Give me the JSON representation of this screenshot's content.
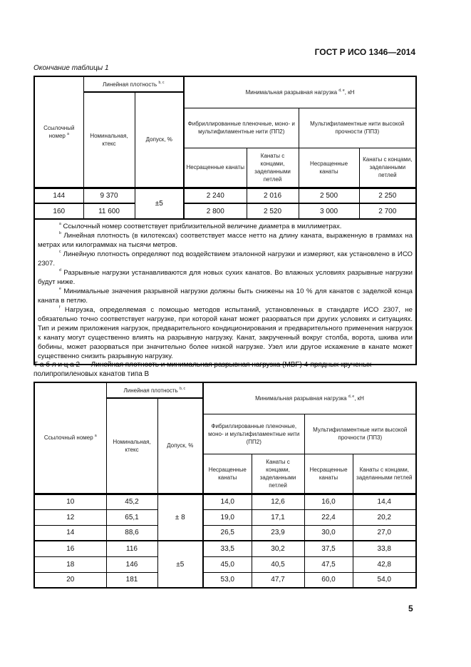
{
  "header": {
    "doc_id": "ГОСТ Р ИСО 1346—2014"
  },
  "table1": {
    "continuation": "Окончание таблицы 1",
    "headers": {
      "ref_no": "Ссылочный номер",
      "ref_no_sup": "a",
      "lin_density": "Линейная плотность",
      "lin_density_sup": "b, c",
      "nominal": "Номинальная, ктекс",
      "tolerance": "Допуск, %",
      "mbf": "Минимальная разрывная нагрузка",
      "mbf_sup": "d, e",
      "mbf_unit": ", кН",
      "pp2": "Фибриллированные пленочные, моно- и мультифиламентные нити (ПП2)",
      "pp3": "Мультифиламентные нити высокой прочности (ПП3)",
      "unspliced": "Несращенные канаты",
      "spliced": "Канаты с концами, заделанными петлей"
    },
    "rows": [
      [
        "144",
        "9 370",
        "2 240",
        "2 016",
        "2 500",
        "2 250"
      ],
      [
        "160",
        "11 600",
        "2 800",
        "2 520",
        "3 000",
        "2 700"
      ]
    ],
    "tolerance_groups": [
      "±5"
    ],
    "footnotes": [
      {
        "mark": "a",
        "text": "Ссылочный номер соответствует приблизительной величине диаметра в миллиметрах."
      },
      {
        "mark": "b",
        "text": "Линейная плотность (в килотексах) соответствует массе нетто на длину каната, выраженную в граммах на метрах или килограммах на тысячи метров."
      },
      {
        "mark": "c",
        "text": "Линейную плотность определяют под воздействием эталонной нагрузки и измеряют, как установлено в ИСО 2307."
      },
      {
        "mark": "d",
        "text": "Разрывные нагрузки устанавливаются для новых сухих канатов. Во влажных условиях разрывные нагрузки будут ниже."
      },
      {
        "mark": "e",
        "text": "Минимальные значения разрывной нагрузки должны быть снижены на 10 % для канатов с заделкой конца каната в петлю."
      },
      {
        "mark": "f",
        "text": "Нагрузка, определяемая с помощью методов испытаний, установленных в стандарте ИСО 2307, не обязательно точно соответствует нагрузке, при которой канат может разорваться при других условиях и ситуациях. Тип и режим приложения нагрузок, предварительного кондиционирования и предварительного применения нагрузок к канату могут существенно влиять на разрывную нагрузку. Канат, закрученный вокруг столба, ворота, шкива или бобины, может разорваться при значительно более низкой нагрузке. Узел или другое искажение в канате может существенно снизить разрывную нагрузку."
      }
    ]
  },
  "table2": {
    "caption": "Т а б л и ц а  2 — Линейная плотность и минимальная разрывная нагрузка (MBF) 4-прядных крученых полипропиленовых канатов типа В",
    "headers": {
      "ref_no": "Ссылочный номер",
      "ref_no_sup": "a",
      "lin_density": "Линейная плотность",
      "lin_density_sup": "b, c",
      "nominal": "Номинальная, ктекс",
      "tolerance": "Допуск, %",
      "mbf": "Минимальная разрывная нагрузка",
      "mbf_sup": "d, e",
      "mbf_unit": ", кН",
      "pp2": "Фибриллированные пленочные, моно- и мультифиламентные нити (ПП2)",
      "pp3": "Мультифиламентные нити высокой прочности (ПП3)",
      "unspliced": "Несращенные канаты",
      "spliced": "Канаты с концами, заделанными петлей"
    },
    "rows": [
      [
        "10",
        "45,2",
        "14,0",
        "12,6",
        "16,0",
        "14,4"
      ],
      [
        "12",
        "65,1",
        "19,0",
        "17,1",
        "22,4",
        "20,2"
      ],
      [
        "14",
        "88,6",
        "26,5",
        "23,9",
        "30,0",
        "27,0"
      ],
      [
        "16",
        "116",
        "33,5",
        "30,2",
        "37,5",
        "33,8"
      ],
      [
        "18",
        "146",
        "45,0",
        "40,5",
        "47,5",
        "42,8"
      ],
      [
        "20",
        "181",
        "53,0",
        "47,7",
        "60,0",
        "54,0"
      ]
    ],
    "tolerance_groups": [
      "± 8",
      "±5"
    ]
  },
  "page_number": "5"
}
